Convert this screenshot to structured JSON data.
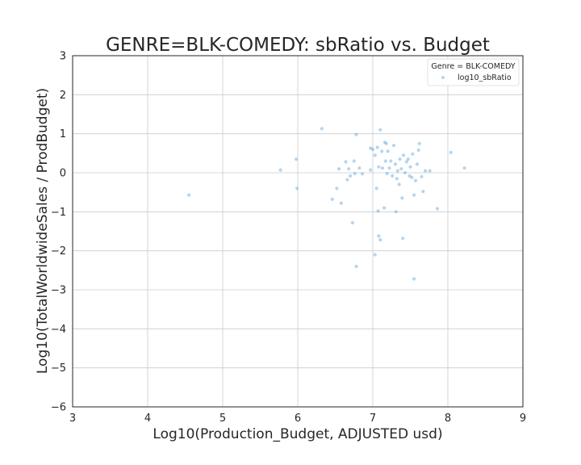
{
  "chart_data": {
    "type": "scatter",
    "title": "GENRE=BLK-COMEDY: sbRatio vs. Budget",
    "xlabel": "Log10(Production_Budget, ADJUSTED usd)",
    "ylabel": "Log10(TotalWorldwideSales / ProdBudget)",
    "xlim": [
      3,
      9
    ],
    "ylim": [
      -6,
      3
    ],
    "xticks": [
      3,
      4,
      5,
      6,
      7,
      8,
      9
    ],
    "yticks": [
      -6,
      -5,
      -4,
      -3,
      -2,
      -1,
      0,
      1,
      2,
      3
    ],
    "grid": true,
    "legend": {
      "title": "Genre = BLK-COMEDY",
      "placement": "top-right",
      "entries": [
        "log10_sbRatio"
      ]
    },
    "point_color": "#5fa2d8",
    "series": [
      {
        "name": "log10_sbRatio",
        "points": [
          [
            4.55,
            -0.57
          ],
          [
            5.77,
            0.07
          ],
          [
            5.98,
            0.35
          ],
          [
            5.99,
            -0.4
          ],
          [
            6.32,
            1.13
          ],
          [
            6.46,
            -0.68
          ],
          [
            6.52,
            -0.4
          ],
          [
            6.55,
            0.1
          ],
          [
            6.58,
            -0.78
          ],
          [
            6.64,
            0.28
          ],
          [
            6.66,
            -0.18
          ],
          [
            6.68,
            0.1
          ],
          [
            6.7,
            -0.08
          ],
          [
            6.73,
            -1.28
          ],
          [
            6.75,
            0.3
          ],
          [
            6.76,
            -0.02
          ],
          [
            6.78,
            -2.4
          ],
          [
            6.78,
            0.98
          ],
          [
            6.82,
            0.12
          ],
          [
            6.86,
            -0.03
          ],
          [
            6.97,
            0.07
          ],
          [
            6.97,
            0.63
          ],
          [
            7.0,
            0.6
          ],
          [
            7.03,
            -2.1
          ],
          [
            7.03,
            0.45
          ],
          [
            7.05,
            -0.4
          ],
          [
            7.06,
            0.65
          ],
          [
            7.07,
            -0.98
          ],
          [
            7.08,
            0.15
          ],
          [
            7.08,
            -1.62
          ],
          [
            7.1,
            -1.72
          ],
          [
            7.1,
            1.1
          ],
          [
            7.12,
            0.55
          ],
          [
            7.13,
            0.12
          ],
          [
            7.15,
            -0.9
          ],
          [
            7.16,
            0.78
          ],
          [
            7.17,
            0.3
          ],
          [
            7.18,
            0.75
          ],
          [
            7.19,
            -0.02
          ],
          [
            7.2,
            0.55
          ],
          [
            7.22,
            0.12
          ],
          [
            7.24,
            0.3
          ],
          [
            7.26,
            -0.08
          ],
          [
            7.28,
            0.7
          ],
          [
            7.3,
            0.22
          ],
          [
            7.31,
            -1.0
          ],
          [
            7.32,
            -0.15
          ],
          [
            7.33,
            0.05
          ],
          [
            7.35,
            -0.3
          ],
          [
            7.36,
            0.35
          ],
          [
            7.38,
            0.1
          ],
          [
            7.39,
            -0.65
          ],
          [
            7.4,
            -1.68
          ],
          [
            7.41,
            0.45
          ],
          [
            7.43,
            0.0
          ],
          [
            7.45,
            0.28
          ],
          [
            7.47,
            0.35
          ],
          [
            7.49,
            -0.08
          ],
          [
            7.5,
            0.15
          ],
          [
            7.52,
            -0.12
          ],
          [
            7.53,
            0.48
          ],
          [
            7.55,
            -2.72
          ],
          [
            7.55,
            -0.57
          ],
          [
            7.57,
            -0.2
          ],
          [
            7.59,
            0.22
          ],
          [
            7.61,
            0.58
          ],
          [
            7.62,
            0.75
          ],
          [
            7.65,
            -0.1
          ],
          [
            7.67,
            -0.48
          ],
          [
            7.7,
            0.05
          ],
          [
            7.76,
            0.05
          ],
          [
            7.86,
            -0.92
          ],
          [
            8.04,
            0.52
          ],
          [
            8.22,
            0.12
          ]
        ]
      }
    ]
  }
}
